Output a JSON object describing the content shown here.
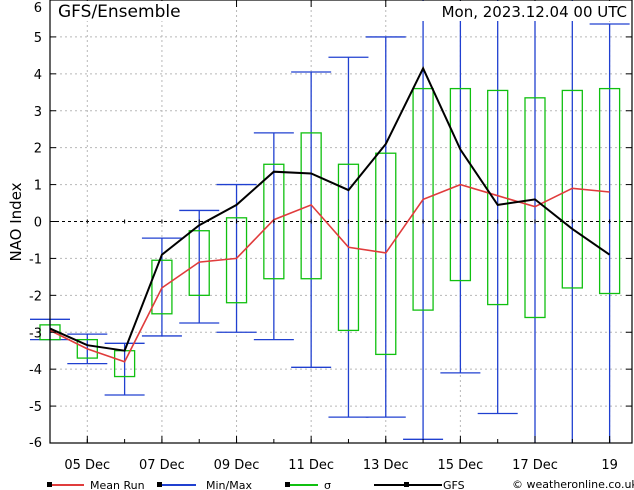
{
  "chart_data": {
    "type": "line",
    "title": "GFS/Ensemble",
    "run_time": "Mon, 2023.12.04  00 UTC",
    "ylabel": "NAO Index",
    "ylim": [
      -6,
      6
    ],
    "yticks": [
      -6,
      -5,
      -4,
      -3,
      -2,
      -1,
      0,
      1,
      2,
      3,
      4,
      5,
      6
    ],
    "xlim": [
      0,
      15.6
    ],
    "xticks": [
      {
        "x": 1,
        "label": "05 Dec"
      },
      {
        "x": 3,
        "label": "07 Dec"
      },
      {
        "x": 5,
        "label": "09 Dec"
      },
      {
        "x": 7,
        "label": "11 Dec"
      },
      {
        "x": 9,
        "label": "13 Dec"
      },
      {
        "x": 11,
        "label": "15 Dec"
      },
      {
        "x": 13,
        "label": "17 Dec"
      },
      {
        "x": 15,
        "label": "19"
      }
    ],
    "grid": true,
    "x": [
      0,
      1,
      2,
      3,
      4,
      5,
      6,
      7,
      8,
      9,
      10,
      11,
      12,
      13,
      14,
      15
    ],
    "mean_run": [
      -2.95,
      -3.45,
      -3.8,
      -1.8,
      -1.1,
      -1.0,
      0.05,
      0.45,
      -0.7,
      -0.85,
      0.6,
      1.0,
      0.7,
      0.4,
      0.9,
      0.8
    ],
    "gfs": [
      -2.9,
      -3.35,
      -3.5,
      -0.9,
      -0.1,
      0.45,
      1.35,
      1.3,
      0.85,
      2.1,
      4.15,
      1.95,
      0.45,
      0.6,
      -0.2,
      -0.9
    ],
    "minmax": [
      {
        "min": -3.2,
        "max": -2.65
      },
      {
        "min": -3.85,
        "max": -3.05
      },
      {
        "min": -4.7,
        "max": -3.3
      },
      {
        "min": -3.1,
        "max": -0.45
      },
      {
        "min": -2.75,
        "max": 0.3
      },
      {
        "min": -3.0,
        "max": 1.0
      },
      {
        "min": -3.2,
        "max": 2.4
      },
      {
        "min": -3.95,
        "max": 4.05
      },
      {
        "min": -5.3,
        "max": 4.45
      },
      {
        "min": -5.3,
        "max": 5.0
      },
      {
        "min": -5.9,
        "max": 6.3
      },
      {
        "min": -4.1,
        "max": 6.3
      },
      {
        "min": -5.2,
        "max": 6.3
      },
      {
        "min": -6.3,
        "max": 5.7
      },
      {
        "min": -6.3,
        "max": 6.3
      },
      {
        "min": -6.0,
        "max": 5.35
      }
    ],
    "sigma": [
      {
        "low": -3.2,
        "high": -2.8
      },
      {
        "low": -3.7,
        "high": -3.2
      },
      {
        "low": -4.2,
        "high": -3.5
      },
      {
        "low": -2.5,
        "high": -1.05
      },
      {
        "low": -2.0,
        "high": -0.25
      },
      {
        "low": -2.2,
        "high": 0.1
      },
      {
        "low": -1.55,
        "high": 1.55
      },
      {
        "low": -1.55,
        "high": 2.4
      },
      {
        "low": -2.95,
        "high": 1.55
      },
      {
        "low": -3.6,
        "high": 1.85
      },
      {
        "low": -2.4,
        "high": 3.6
      },
      {
        "low": -1.6,
        "high": 3.6
      },
      {
        "low": -2.25,
        "high": 3.55
      },
      {
        "low": -2.6,
        "high": 3.35
      },
      {
        "low": -1.8,
        "high": 3.55
      },
      {
        "low": -1.95,
        "high": 3.6
      }
    ],
    "legend": [
      {
        "label": "Mean Run",
        "color": "#e03c3c"
      },
      {
        "label": "Min/Max",
        "color": "#2040d0"
      },
      {
        "label": "σ",
        "color": "#10c010"
      },
      {
        "label": "GFS",
        "color": "#000000"
      }
    ],
    "credit": "© weatheronline.co.uk"
  }
}
